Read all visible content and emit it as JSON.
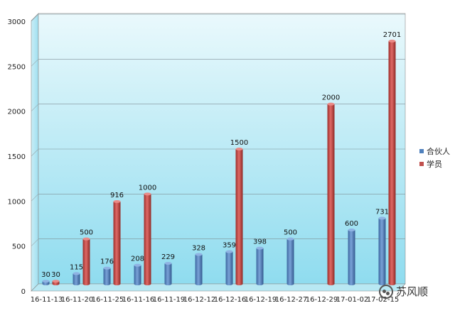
{
  "chart_data": {
    "type": "bar",
    "categories": [
      "16-11-13",
      "16-11-20",
      "16-11-25",
      "16-11-16",
      "16-11-19",
      "16-12-12",
      "16-12-16",
      "16-12-19",
      "16-12-27",
      "16-12-29",
      "17-01-02",
      "17-02-15"
    ],
    "series": [
      {
        "name": "合伙人",
        "color": "#4f81bd",
        "values": [
          30,
          115,
          176,
          208,
          229,
          328,
          359,
          398,
          500,
          null,
          600,
          731
        ]
      },
      {
        "name": "学员",
        "color": "#c0504d",
        "values": [
          30,
          500,
          916,
          1000,
          null,
          null,
          1500,
          null,
          null,
          2000,
          null,
          2701
        ]
      }
    ],
    "yticks": [
      0,
      500,
      1000,
      1500,
      2000,
      2500,
      3000
    ],
    "ylim": [
      0,
      3000
    ],
    "grid": true,
    "legend_position": "right"
  },
  "watermark": {
    "text": "苏风顺",
    "icon": "wechat-icon"
  }
}
